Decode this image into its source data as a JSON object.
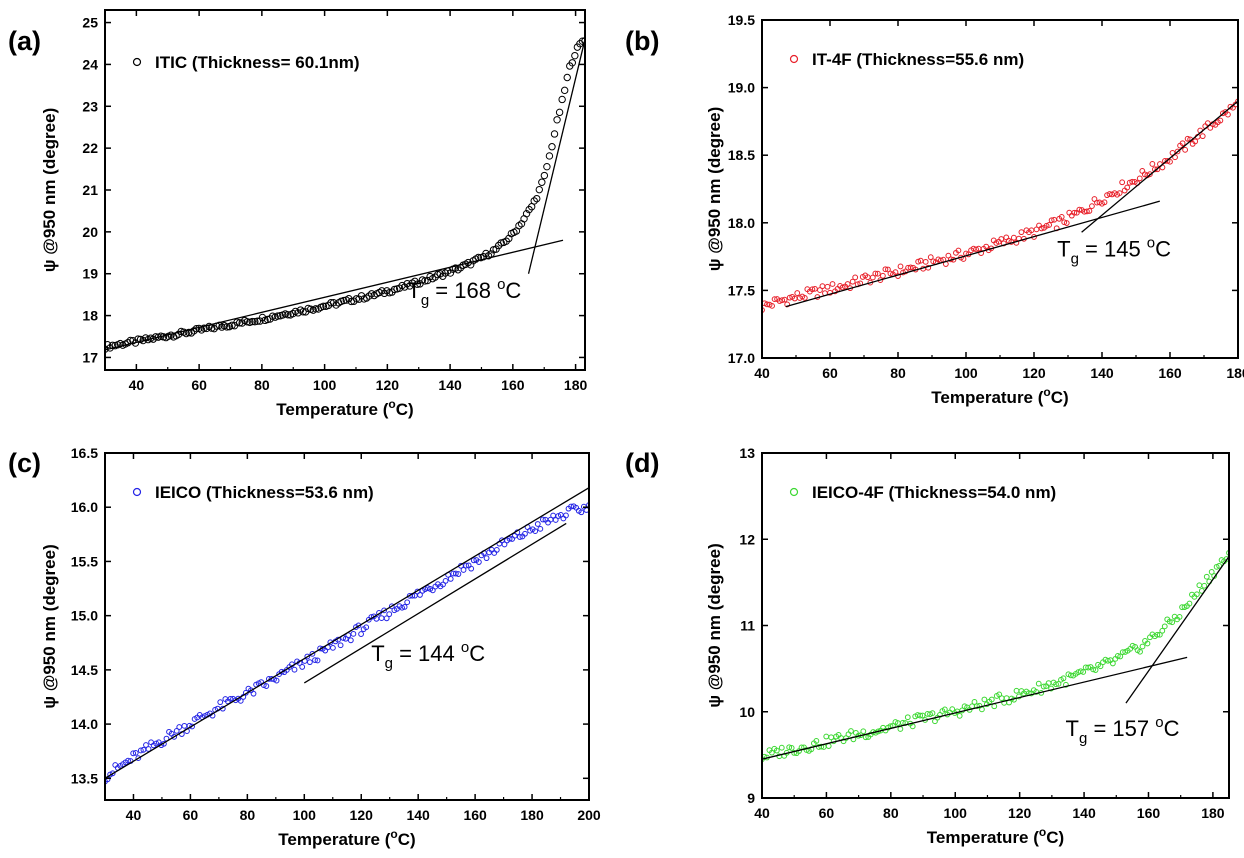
{
  "chart_data": [
    {
      "type": "scatter",
      "panel_label": "(a)",
      "legend": "ITIC  (Thickness= 60.1nm)",
      "xlabel": "Temperature (oC)",
      "ylabel": "ψ @950 nm (degree)",
      "xlim": [
        30,
        183
      ],
      "ylim": [
        16.7,
        25.3
      ],
      "xticks": [
        40,
        60,
        80,
        100,
        120,
        140,
        160,
        180
      ],
      "yticks": [
        17,
        18,
        19,
        20,
        21,
        22,
        23,
        24,
        25
      ],
      "color": "#000000",
      "annotation": {
        "prefix": "T",
        "sub": "g",
        "mid": " = 168 ",
        "sup": "o",
        "suffix": "C"
      },
      "series": [
        {
          "x": [
            30,
            35,
            40,
            45,
            50,
            55,
            60,
            65,
            70,
            75,
            80,
            85,
            90,
            95,
            100,
            105,
            110,
            115,
            120,
            125,
            130,
            135,
            140,
            145,
            150,
            155,
            160,
            163,
            166,
            168,
            170,
            172,
            174,
            176,
            178,
            180,
            182,
            183
          ],
          "y": [
            17.25,
            17.32,
            17.38,
            17.45,
            17.52,
            17.58,
            17.65,
            17.72,
            17.78,
            17.85,
            17.92,
            18.0,
            18.08,
            18.15,
            18.23,
            18.31,
            18.4,
            18.48,
            18.58,
            18.68,
            18.8,
            18.92,
            19.05,
            19.2,
            19.38,
            19.6,
            19.95,
            20.25,
            20.6,
            20.9,
            21.3,
            21.9,
            22.6,
            23.2,
            23.9,
            24.3,
            24.55,
            24.6
          ]
        }
      ],
      "fit_lines": [
        {
          "x": [
            30,
            176
          ],
          "y": [
            17.18,
            19.8
          ]
        },
        {
          "x": [
            165,
            183
          ],
          "y": [
            19.0,
            24.6
          ]
        }
      ]
    },
    {
      "type": "scatter",
      "panel_label": "(b)",
      "legend": "IT-4F (Thickness=55.6 nm)",
      "xlabel": "Temperature (oC)",
      "ylabel": "ψ @950 nm (degree)",
      "xlim": [
        40,
        180
      ],
      "ylim": [
        17.0,
        19.5
      ],
      "xticks": [
        40,
        60,
        80,
        100,
        120,
        140,
        160,
        180
      ],
      "yticks": [
        17.0,
        17.5,
        18.0,
        18.5,
        19.0,
        19.5
      ],
      "color": "#e8202a",
      "annotation": {
        "prefix": "T",
        "sub": "g",
        "mid": " = 145 ",
        "sup": "o",
        "suffix": "C"
      },
      "series": [
        {
          "x": [
            40,
            45,
            50,
            55,
            60,
            65,
            70,
            75,
            80,
            85,
            90,
            95,
            100,
            105,
            110,
            115,
            120,
            125,
            130,
            135,
            140,
            145,
            150,
            155,
            160,
            165,
            170,
            175,
            180
          ],
          "y": [
            17.38,
            17.42,
            17.45,
            17.48,
            17.51,
            17.54,
            17.58,
            17.61,
            17.64,
            17.67,
            17.71,
            17.74,
            17.77,
            17.81,
            17.85,
            17.89,
            17.93,
            17.98,
            18.03,
            18.1,
            18.18,
            18.25,
            18.32,
            18.4,
            18.48,
            18.58,
            18.68,
            18.78,
            18.88
          ]
        }
      ],
      "fit_lines": [
        {
          "x": [
            47,
            157
          ],
          "y": [
            17.38,
            18.16
          ]
        },
        {
          "x": [
            134,
            180
          ],
          "y": [
            17.93,
            18.9
          ]
        }
      ]
    },
    {
      "type": "scatter",
      "panel_label": "(c)",
      "legend": "IEICO (Thickness=53.6 nm)",
      "xlabel": "Temperature (oC)",
      "ylabel": "ψ @950 nm (degree)",
      "xlim": [
        30,
        200
      ],
      "ylim": [
        13.3,
        16.5
      ],
      "xticks": [
        40,
        60,
        80,
        100,
        120,
        140,
        160,
        180,
        200
      ],
      "yticks": [
        13.5,
        14.0,
        14.5,
        15.0,
        15.5,
        16.0,
        16.5
      ],
      "color": "#2323e6",
      "annotation": {
        "prefix": "T",
        "sub": "g",
        "mid": " = 144 ",
        "sup": "o",
        "suffix": "C"
      },
      "series": [
        {
          "x": [
            30,
            35,
            40,
            45,
            50,
            55,
            60,
            65,
            70,
            75,
            80,
            85,
            90,
            95,
            100,
            105,
            110,
            115,
            120,
            125,
            130,
            135,
            140,
            145,
            150,
            155,
            160,
            165,
            170,
            175,
            180,
            185,
            190,
            195,
            200
          ],
          "y": [
            13.52,
            13.6,
            13.69,
            13.77,
            13.85,
            13.93,
            14.0,
            14.08,
            14.15,
            14.22,
            14.28,
            14.35,
            14.42,
            14.5,
            14.57,
            14.64,
            14.72,
            14.8,
            14.88,
            14.96,
            15.04,
            15.12,
            15.2,
            15.27,
            15.35,
            15.43,
            15.5,
            15.58,
            15.66,
            15.73,
            15.8,
            15.86,
            15.92,
            15.97,
            16.0
          ]
        }
      ],
      "fit_lines": [
        {
          "x": [
            30,
            200
          ],
          "y": [
            13.5,
            16.18
          ]
        },
        {
          "x": [
            100,
            192
          ],
          "y": [
            14.38,
            15.85
          ]
        }
      ]
    },
    {
      "type": "scatter",
      "panel_label": "(d)",
      "legend": "IEICO-4F (Thickness=54.0 nm)",
      "xlabel": "Temperature (oC)",
      "ylabel": "ψ @950 nm (degree)",
      "xlim": [
        40,
        185
      ],
      "ylim": [
        9,
        13
      ],
      "xticks": [
        40,
        60,
        80,
        100,
        120,
        140,
        160,
        180
      ],
      "yticks": [
        9,
        10,
        11,
        12,
        13
      ],
      "color": "#3cd832",
      "annotation": {
        "prefix": "T",
        "sub": "g",
        "mid": " = 157 ",
        "sup": "o",
        "suffix": "C"
      },
      "series": [
        {
          "x": [
            40,
            45,
            50,
            55,
            60,
            65,
            70,
            75,
            80,
            85,
            90,
            95,
            100,
            105,
            110,
            115,
            120,
            125,
            130,
            135,
            140,
            145,
            150,
            155,
            160,
            165,
            170,
            175,
            180,
            185
          ],
          "y": [
            9.48,
            9.53,
            9.57,
            9.61,
            9.65,
            9.7,
            9.74,
            9.78,
            9.82,
            9.87,
            9.92,
            9.96,
            10.0,
            10.05,
            10.1,
            10.15,
            10.2,
            10.26,
            10.32,
            10.38,
            10.45,
            10.52,
            10.6,
            10.7,
            10.82,
            10.98,
            11.15,
            11.38,
            11.62,
            11.82
          ]
        }
      ],
      "fit_lines": [
        {
          "x": [
            40,
            172
          ],
          "y": [
            9.45,
            10.63
          ]
        },
        {
          "x": [
            153,
            185
          ],
          "y": [
            10.1,
            11.8
          ]
        }
      ]
    }
  ]
}
